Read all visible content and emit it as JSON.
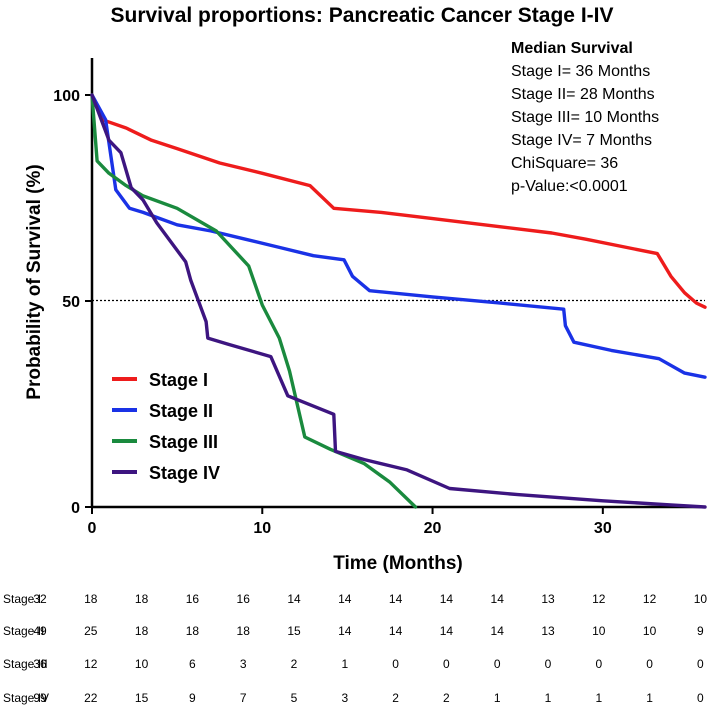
{
  "chart_data": {
    "type": "line",
    "title": "Survival proportions: Pancreatic Cancer Stage I-IV",
    "xlabel": "Time (Months)",
    "ylabel": "Probability of Survival (%)",
    "xlim": [
      0,
      36
    ],
    "ylim": [
      0,
      100
    ],
    "x_ticks": [
      0,
      10,
      20,
      30
    ],
    "y_ticks": [
      0,
      50,
      100
    ],
    "reference_line": {
      "y": 50,
      "style": "dotted"
    },
    "grid": false,
    "legend_position": "bottom-left",
    "series": [
      {
        "name": "Stage I",
        "color": "#ee1c1c",
        "points": [
          [
            0,
            100
          ],
          [
            0.6,
            94
          ],
          [
            2,
            92
          ],
          [
            3.5,
            89
          ],
          [
            5,
            87
          ],
          [
            7.5,
            83.5
          ],
          [
            10,
            81
          ],
          [
            12.8,
            78
          ],
          [
            14.2,
            72.5
          ],
          [
            17,
            71.5
          ],
          [
            20,
            70
          ],
          [
            24,
            68
          ],
          [
            27,
            66.5
          ],
          [
            29,
            65
          ],
          [
            33.2,
            61.5
          ],
          [
            34,
            56
          ],
          [
            34.8,
            52
          ],
          [
            35.5,
            49.5
          ],
          [
            36,
            48.5
          ]
        ]
      },
      {
        "name": "Stage II",
        "color": "#1a32e6",
        "points": [
          [
            0,
            100
          ],
          [
            0.8,
            94
          ],
          [
            1.4,
            77
          ],
          [
            2.2,
            72.5
          ],
          [
            3,
            71.5
          ],
          [
            4,
            70
          ],
          [
            5,
            68.5
          ],
          [
            7,
            67
          ],
          [
            9,
            65
          ],
          [
            11,
            63
          ],
          [
            13,
            61
          ],
          [
            14.8,
            60
          ],
          [
            15.3,
            56
          ],
          [
            16.3,
            52.5
          ],
          [
            20,
            51
          ],
          [
            24,
            49.5
          ],
          [
            27.7,
            48
          ],
          [
            27.8,
            44
          ],
          [
            28.3,
            40
          ],
          [
            30.5,
            38
          ],
          [
            33.3,
            36
          ],
          [
            34.8,
            32.5
          ],
          [
            36,
            31.5
          ]
        ]
      },
      {
        "name": "Stage III",
        "color": "#1a8a3e",
        "points": [
          [
            0,
            100
          ],
          [
            0.3,
            84
          ],
          [
            1,
            81
          ],
          [
            2,
            78
          ],
          [
            3,
            75.5
          ],
          [
            5,
            72.5
          ],
          [
            7.3,
            67
          ],
          [
            9.2,
            58.5
          ],
          [
            10,
            49
          ],
          [
            11,
            41
          ],
          [
            11.6,
            33
          ],
          [
            12.5,
            17
          ],
          [
            14,
            14
          ],
          [
            16,
            10.5
          ],
          [
            17.5,
            6
          ],
          [
            19,
            0
          ]
        ]
      },
      {
        "name": "Stage IV",
        "color": "#3d1580",
        "points": [
          [
            0,
            100
          ],
          [
            1,
            89
          ],
          [
            1.7,
            86
          ],
          [
            2.3,
            77.5
          ],
          [
            3,
            74.5
          ],
          [
            3.8,
            69
          ],
          [
            5.5,
            59.5
          ],
          [
            5.8,
            55
          ],
          [
            6.7,
            45
          ],
          [
            6.8,
            41
          ],
          [
            8,
            39.5
          ],
          [
            10.5,
            36.5
          ],
          [
            11.5,
            27
          ],
          [
            14.2,
            22.5
          ],
          [
            14.3,
            13.5
          ],
          [
            16,
            11.5
          ],
          [
            18.5,
            9
          ],
          [
            21,
            4.5
          ],
          [
            25,
            3
          ],
          [
            30,
            1.5
          ],
          [
            34,
            0.5
          ],
          [
            36,
            0
          ]
        ]
      }
    ],
    "annotation": {
      "heading": "Median Survival",
      "lines": [
        "Stage I= 36 Months",
        "Stage II= 28 Months",
        "Stage III= 10 Months",
        "Stage IV= 7 Months",
        "ChiSquare= 36",
        "p-Value:<0.0001"
      ]
    },
    "risk_table": {
      "rows": [
        {
          "label": "Stage I",
          "values": [
            32,
            18,
            18,
            16,
            16,
            14,
            14,
            14,
            14,
            14,
            13,
            12,
            12,
            10
          ]
        },
        {
          "label": "Stage II",
          "values": [
            49,
            25,
            18,
            18,
            18,
            15,
            14,
            14,
            14,
            14,
            13,
            10,
            10,
            9
          ]
        },
        {
          "label": "Stage III",
          "values": [
            36,
            12,
            10,
            6,
            3,
            2,
            1,
            0,
            0,
            0,
            0,
            0,
            0,
            0
          ]
        },
        {
          "label": "Stage IV",
          "values": [
            99,
            22,
            15,
            9,
            7,
            5,
            3,
            2,
            2,
            1,
            1,
            1,
            1,
            0
          ]
        }
      ]
    }
  }
}
